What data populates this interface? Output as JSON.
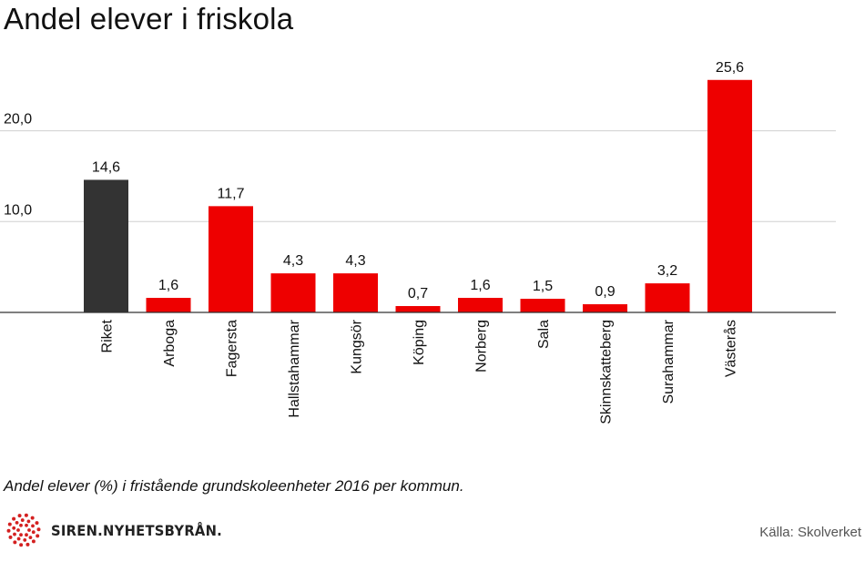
{
  "chart_data": {
    "type": "bar",
    "title": "Andel elever i friskola",
    "categories": [
      "Riket",
      "Arboga",
      "Fagersta",
      "Hallstahammar",
      "Kungsör",
      "Köping",
      "Norberg",
      "Sala",
      "Skinnskatteberg",
      "Surahammar",
      "Västerås"
    ],
    "values": [
      14.6,
      1.6,
      11.7,
      4.3,
      4.3,
      0.7,
      1.6,
      1.5,
      0.9,
      3.2,
      25.6
    ],
    "value_labels": [
      "14,6",
      "1,6",
      "11,7",
      "4,3",
      "4,3",
      "0,7",
      "1,6",
      "1,5",
      "0,9",
      "3,2",
      "25,6"
    ],
    "bar_colors": [
      "#333333",
      "#ee0000",
      "#ee0000",
      "#ee0000",
      "#ee0000",
      "#ee0000",
      "#ee0000",
      "#ee0000",
      "#ee0000",
      "#ee0000",
      "#ee0000"
    ],
    "yticks": [
      10,
      20
    ],
    "ytick_labels": [
      "10,0",
      "20,0"
    ],
    "ylim": [
      0,
      27
    ],
    "grid": true,
    "xlabel": "",
    "ylabel": ""
  },
  "caption": "Andel elever (%) i fristående grundskoleenheter 2016 per kommun.",
  "brand": {
    "name": "SIREN.NYHETSBYRÅN.",
    "logo_color": "#d42020",
    "logo_icon": "sunburst-dots-icon"
  },
  "source": "Källa: Skolverket"
}
